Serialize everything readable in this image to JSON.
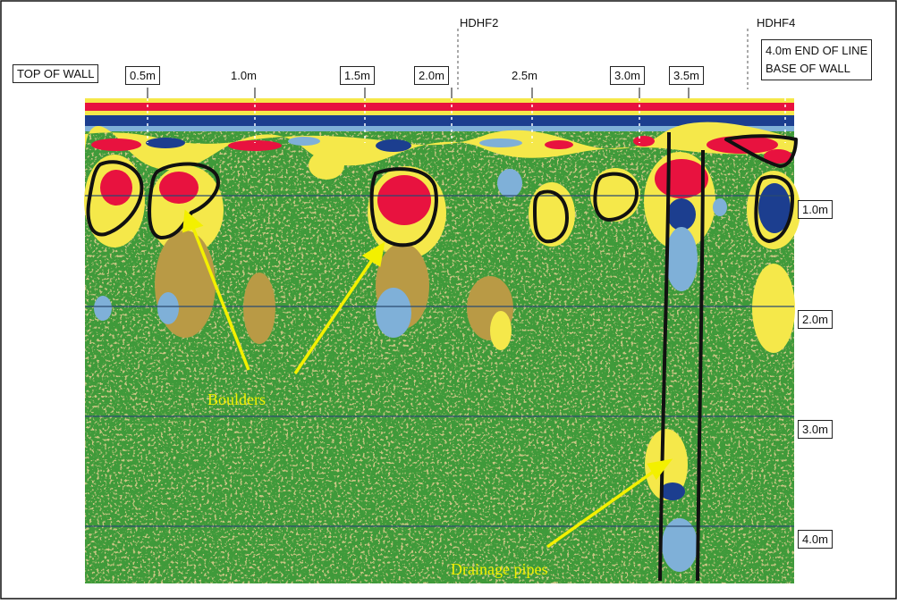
{
  "markers": {
    "hdhf2": "HDHF2",
    "hdhf4": "HDHF4"
  },
  "horizontal_scale": {
    "top_of_wall": "TOP OF WALL",
    "ticks": [
      "0.5m",
      "1.0m",
      "1.5m",
      "2.0m",
      "2.5m",
      "3.0m",
      "3.5m"
    ],
    "end_line_1": "4.0m END OF LINE",
    "end_line_2": "BASE OF WALL"
  },
  "depth_scale": {
    "ticks": [
      "1.0m",
      "2.0m",
      "3.0m",
      "4.0m"
    ]
  },
  "annotations": {
    "boulders": "Boulders",
    "drainage_pipes": "Drainage pipes"
  },
  "colors": {
    "background_green": "#3f9a3a",
    "strong_positive": "#e8123f",
    "positive": "#f5e84a",
    "weak_positive": "#b99a45",
    "weak_negative": "#7fb0d8",
    "strong_negative": "#1c3e8f",
    "annotation": "#f3f000"
  }
}
